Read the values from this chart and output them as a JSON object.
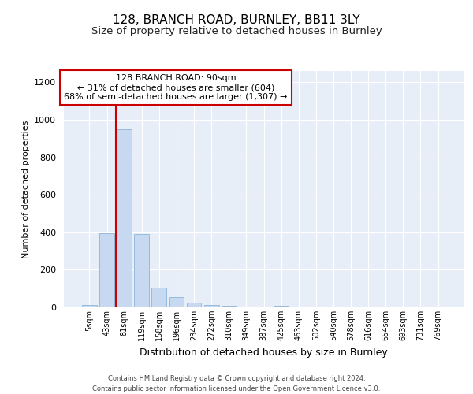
{
  "title1": "128, BRANCH ROAD, BURNLEY, BB11 3LY",
  "title2": "Size of property relative to detached houses in Burnley",
  "xlabel": "Distribution of detached houses by size in Burnley",
  "ylabel": "Number of detached properties",
  "annotation_line1": "128 BRANCH ROAD: 90sqm",
  "annotation_line2": "← 31% of detached houses are smaller (604)",
  "annotation_line3": "68% of semi-detached houses are larger (1,307) →",
  "footer1": "Contains HM Land Registry data © Crown copyright and database right 2024.",
  "footer2": "Contains public sector information licensed under the Open Government Licence v3.0.",
  "bar_color": "#c6d9f0",
  "bar_edge_color": "#8ab4d8",
  "highlight_line_color": "#cc0000",
  "annotation_box_color": "#cc0000",
  "background_color": "#e8eef8",
  "ylim": [
    0,
    1260
  ],
  "categories": [
    "5sqm",
    "43sqm",
    "81sqm",
    "119sqm",
    "158sqm",
    "196sqm",
    "234sqm",
    "272sqm",
    "310sqm",
    "349sqm",
    "387sqm",
    "425sqm",
    "463sqm",
    "502sqm",
    "540sqm",
    "578sqm",
    "616sqm",
    "654sqm",
    "693sqm",
    "731sqm",
    "769sqm"
  ],
  "values": [
    12,
    395,
    950,
    392,
    107,
    55,
    27,
    13,
    10,
    0,
    0,
    10,
    0,
    0,
    0,
    0,
    0,
    0,
    0,
    0,
    0
  ],
  "yticks": [
    0,
    200,
    400,
    600,
    800,
    1000,
    1200
  ]
}
